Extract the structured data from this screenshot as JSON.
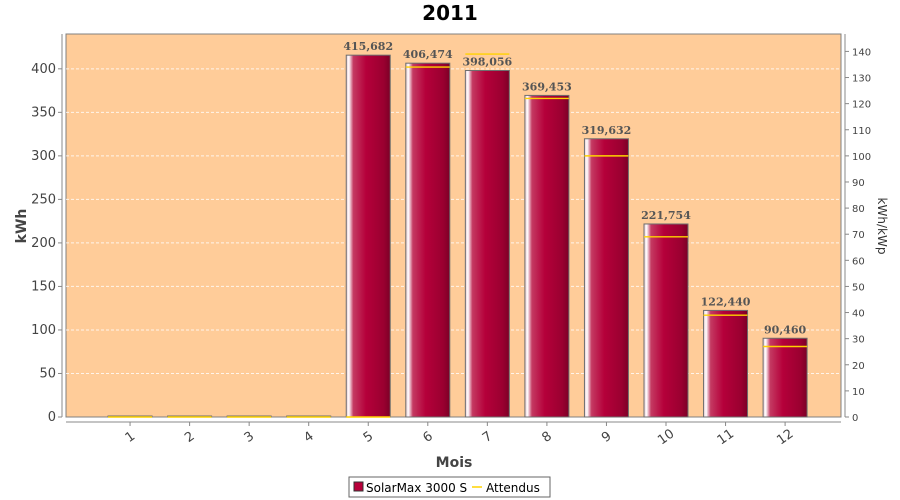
{
  "chart_data": {
    "type": "bar",
    "title": "2011",
    "xlabel": "Mois",
    "ylabel": "kWh",
    "ylabel_right": "kWh/kWp",
    "categories": [
      "1",
      "2",
      "3",
      "4",
      "5",
      "6",
      "7",
      "8",
      "9",
      "10",
      "11",
      "12"
    ],
    "ylim": [
      0,
      440
    ],
    "yticks": [
      0,
      50,
      100,
      150,
      200,
      250,
      300,
      350,
      400
    ],
    "ylim_right": [
      0,
      146.67
    ],
    "yticks_right": [
      0,
      10,
      20,
      30,
      40,
      50,
      60,
      70,
      80,
      90,
      100,
      110,
      120,
      130,
      140
    ],
    "grid": true,
    "legend_position": "bottom",
    "series": [
      {
        "name": "SolarMax 3000 S",
        "type": "bar",
        "color": "#b8003a",
        "values": [
          0,
          0,
          0,
          0,
          415.682,
          406.474,
          398.056,
          369.453,
          319.632,
          221.754,
          122.44,
          90.46
        ],
        "labels": [
          "",
          "",
          "",
          "",
          "415,682",
          "406,474",
          "398,056",
          "369,453",
          "319,632",
          "221,754",
          "122,440",
          "90,460"
        ]
      },
      {
        "name": "Attendus",
        "type": "line-marker",
        "color": "#ffd200",
        "axis": "right",
        "values": [
          0,
          0,
          0,
          0,
          0,
          134,
          139,
          122,
          100,
          69,
          39,
          27
        ]
      }
    ],
    "plot_background": "#ffcc99"
  }
}
